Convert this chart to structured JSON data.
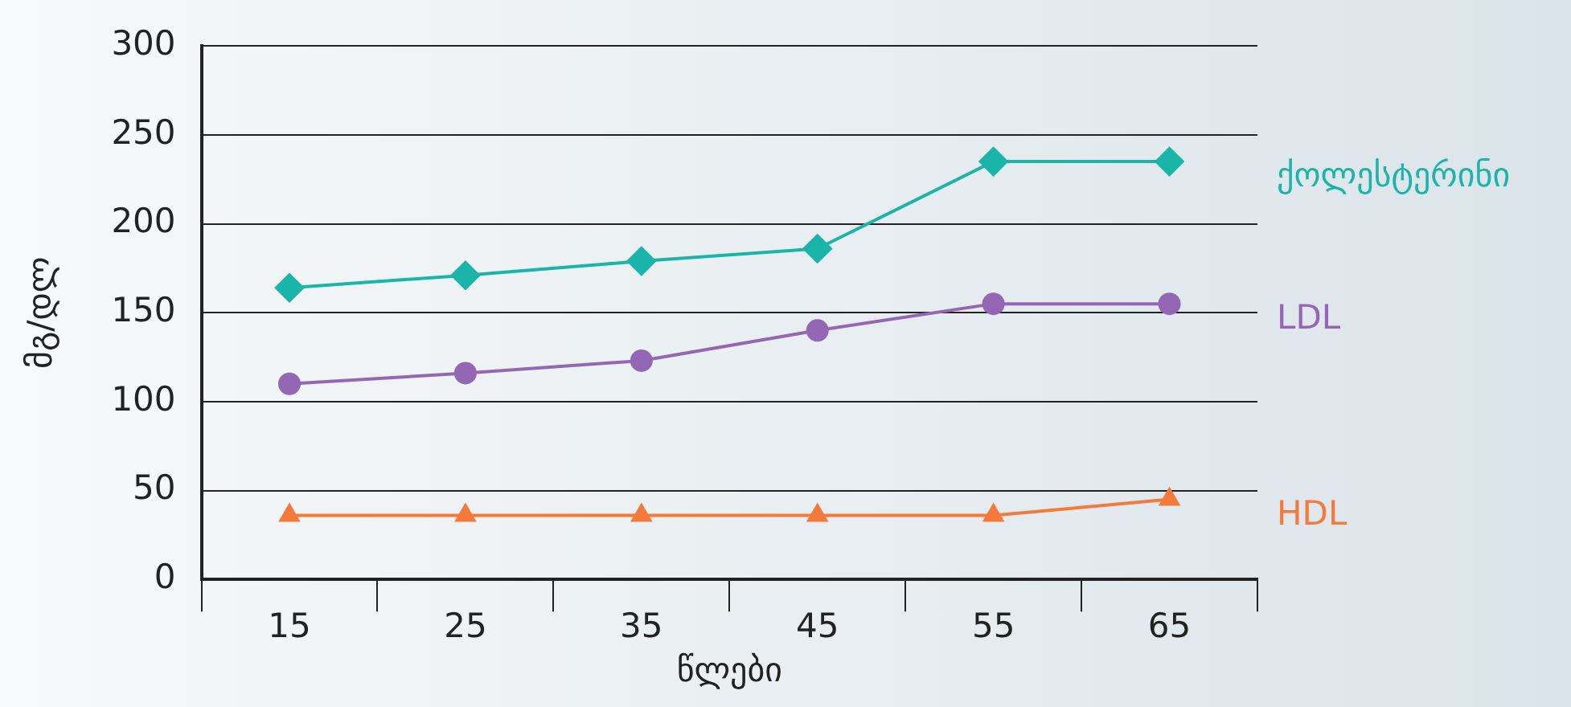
{
  "chart_data": {
    "type": "line",
    "xlabel": "წლები",
    "ylabel": "მგ/დლ",
    "categories": [
      "15",
      "25",
      "35",
      "45",
      "55",
      "65"
    ],
    "series": [
      {
        "name": "ქოლესტერინი",
        "color": "#1ab5a8",
        "marker": "diamond",
        "values": [
          164,
          171,
          179,
          186,
          235,
          235
        ]
      },
      {
        "name": "LDL",
        "color": "#9467b5",
        "marker": "circle",
        "values": [
          110,
          116,
          123,
          140,
          155,
          155
        ]
      },
      {
        "name": "HDL",
        "color": "#f47a3c",
        "marker": "triangle",
        "values": [
          36,
          36,
          36,
          36,
          36,
          45
        ]
      }
    ],
    "ylim": [
      0,
      300
    ],
    "yticks": [
      0,
      50,
      100,
      150,
      200,
      250,
      300
    ],
    "grid": "y",
    "legend": false
  }
}
